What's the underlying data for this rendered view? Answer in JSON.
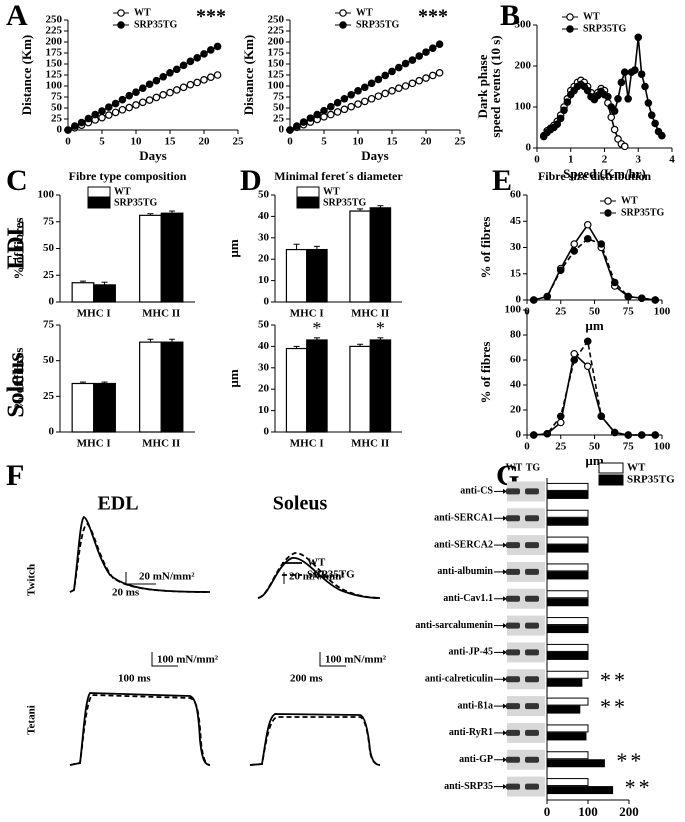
{
  "panel_labels": [
    "A",
    "B",
    "C",
    "D",
    "E",
    "F",
    "G"
  ],
  "row_labels": [
    "EDL",
    "Soleus"
  ],
  "panel_f": {
    "columns": [
      "EDL",
      "Soleus"
    ],
    "rows": [
      "Twitch",
      "Tetani"
    ],
    "legend": [
      "WT",
      "SRP35TG"
    ],
    "scale_bars": [
      "20 mN/mm²",
      "20 ms",
      "20 mN/mm²",
      "100 mN/mm²",
      "100 ms",
      "100 mN/mm²",
      "200 ms"
    ]
  },
  "chart_data": [
    {
      "type": "line",
      "xlabel": "Days",
      "ylabel": [
        "Distance (Km)"
      ],
      "legend": "top-left",
      "xlim": [
        0,
        25
      ],
      "xticks": [
        0,
        5,
        10,
        15,
        20,
        25
      ],
      "ylim": [
        0,
        250
      ],
      "yticks": [
        0,
        25,
        50,
        75,
        100,
        125,
        150,
        175,
        200,
        225,
        250
      ],
      "annotations": [
        {
          "text": "***"
        }
      ],
      "x": [
        0,
        1,
        2,
        3,
        4,
        5,
        6,
        7,
        8,
        9,
        10,
        11,
        12,
        13,
        14,
        15,
        16,
        17,
        18,
        19,
        20,
        21,
        22
      ],
      "series": [
        {
          "name": "WT",
          "color": "#000000",
          "fill": "#ffffff",
          "values": [
            0,
            5,
            11,
            17,
            23,
            28,
            34,
            40,
            46,
            51,
            57,
            63,
            68,
            74,
            80,
            85,
            91,
            97,
            103,
            108,
            114,
            120,
            125
          ]
        },
        {
          "name": "SRP35TG",
          "color": "#000000",
          "fill": "#000000",
          "values": [
            0,
            9,
            17,
            26,
            35,
            43,
            52,
            60,
            69,
            78,
            86,
            95,
            104,
            112,
            121,
            130,
            138,
            147,
            156,
            164,
            173,
            182,
            190
          ]
        }
      ]
    },
    {
      "type": "line",
      "xlabel": "Days",
      "ylabel": [
        "Distance (Km)"
      ],
      "legend": "top-left",
      "xlim": [
        0,
        25
      ],
      "xticks": [
        0,
        5,
        10,
        15,
        20,
        25
      ],
      "ylim": [
        0,
        250
      ],
      "yticks": [
        0,
        25,
        50,
        75,
        100,
        125,
        150,
        175,
        200,
        225,
        250
      ],
      "annotations": [
        {
          "text": "***"
        }
      ],
      "x": [
        0,
        1,
        2,
        3,
        4,
        5,
        6,
        7,
        8,
        9,
        10,
        11,
        12,
        13,
        14,
        15,
        16,
        17,
        18,
        19,
        20,
        21,
        22
      ],
      "series": [
        {
          "name": "WT",
          "color": "#000000",
          "fill": "#ffffff",
          "values": [
            0,
            6,
            12,
            18,
            24,
            30,
            35,
            41,
            47,
            53,
            59,
            65,
            71,
            77,
            83,
            89,
            95,
            100,
            106,
            112,
            118,
            124,
            130
          ]
        },
        {
          "name": "SRP35TG",
          "color": "#000000",
          "fill": "#000000",
          "values": [
            0,
            9,
            18,
            27,
            35,
            44,
            53,
            62,
            71,
            80,
            89,
            97,
            106,
            115,
            124,
            133,
            142,
            151,
            159,
            168,
            177,
            186,
            195
          ]
        }
      ]
    },
    {
      "type": "line",
      "xlabel": "Speed (Km/hr)",
      "ylabel": [
        "Dark phase",
        "speed events (10 s)"
      ],
      "legend": "top-left",
      "xlim": [
        0,
        4
      ],
      "xticks": [
        0,
        1,
        2,
        3,
        4
      ],
      "ylim": [
        0,
        300
      ],
      "yticks": [
        0,
        100,
        200,
        300
      ],
      "x": [
        0.2,
        0.3,
        0.4,
        0.5,
        0.6,
        0.7,
        0.8,
        0.9,
        1.0,
        1.1,
        1.2,
        1.3,
        1.4,
        1.5,
        1.6,
        1.7,
        1.8,
        1.9,
        2.0,
        2.1,
        2.2,
        2.3,
        2.4,
        2.5,
        2.6,
        2.7,
        2.8,
        2.9,
        3.0,
        3.1,
        3.2,
        3.3,
        3.4,
        3.5,
        3.6,
        3.7
      ],
      "series": [
        {
          "name": "WT",
          "color": "#000000",
          "fill": "#ffffff",
          "values": [
            30,
            42,
            48,
            55,
            65,
            80,
            100,
            120,
            140,
            150,
            160,
            165,
            160,
            150,
            135,
            125,
            135,
            145,
            140,
            110,
            75,
            45,
            22,
            10,
            4,
            null,
            null,
            null,
            null,
            null,
            null,
            null,
            null,
            null,
            null,
            null
          ]
        },
        {
          "name": "SRP35TG",
          "color": "#000000",
          "fill": "#000000",
          "values": [
            28,
            38,
            45,
            50,
            58,
            72,
            92,
            112,
            130,
            140,
            150,
            155,
            150,
            140,
            125,
            118,
            128,
            138,
            130,
            125,
            100,
            90,
            120,
            160,
            185,
            120,
            185,
            190,
            270,
            180,
            150,
            110,
            80,
            60,
            40,
            30
          ]
        }
      ]
    },
    {
      "type": "bar",
      "title": "Fibre type composition",
      "ylabel": [
        "% of fibres"
      ],
      "legend": "top-left",
      "ylim": [
        0,
        100
      ],
      "yticks": [
        0,
        25,
        50,
        75,
        100
      ],
      "categories": [
        "MHC I",
        "MHC II"
      ],
      "series": [
        {
          "name": "WT",
          "color": "#ffffff",
          "values": [
            18,
            81
          ],
          "errors": [
            1.5,
            1.5
          ]
        },
        {
          "name": "SRP35TG",
          "color": "#000000",
          "values": [
            16,
            83
          ],
          "errors": [
            2.5,
            2
          ]
        }
      ]
    },
    {
      "type": "bar",
      "ylabel": [
        "% of fibres"
      ],
      "ylim": [
        0,
        75
      ],
      "yticks": [
        0,
        25,
        50,
        75
      ],
      "categories": [
        "MHC I",
        "MHC II"
      ],
      "series": [
        {
          "name": "WT",
          "color": "#ffffff",
          "values": [
            34,
            63
          ],
          "errors": [
            1,
            2
          ]
        },
        {
          "name": "SRP35TG",
          "color": "#000000",
          "values": [
            34,
            63
          ],
          "errors": [
            1,
            2
          ]
        }
      ]
    },
    {
      "type": "bar",
      "title": "Minimal feret´s diameter",
      "ylabel": [
        "µm"
      ],
      "legend": "top-left",
      "ylim": [
        0,
        50
      ],
      "yticks": [
        0,
        10,
        20,
        30,
        40,
        50
      ],
      "categories": [
        "MHC I",
        "MHC II"
      ],
      "series": [
        {
          "name": "WT",
          "color": "#ffffff",
          "values": [
            24.5,
            42.5
          ],
          "errors": [
            2.5,
            1
          ]
        },
        {
          "name": "SRP35TG",
          "color": "#000000",
          "values": [
            24.5,
            44
          ],
          "errors": [
            1.5,
            1
          ]
        }
      ]
    },
    {
      "type": "bar",
      "ylabel": [
        "µm"
      ],
      "ylim": [
        0,
        50
      ],
      "yticks": [
        0,
        10,
        20,
        30,
        40,
        50
      ],
      "categories": [
        "MHC I",
        "MHC II"
      ],
      "annotations": [
        {
          "text": "*",
          "category": "MHC I",
          "series": "SRP35TG"
        },
        {
          "text": "*",
          "category": "MHC II",
          "series": "SRP35TG"
        }
      ],
      "series": [
        {
          "name": "WT",
          "color": "#ffffff",
          "values": [
            39,
            40
          ],
          "errors": [
            1,
            1
          ]
        },
        {
          "name": "SRP35TG",
          "color": "#000000",
          "values": [
            43,
            43
          ],
          "errors": [
            1,
            1
          ]
        }
      ]
    },
    {
      "type": "line",
      "title": "Fibre size distribution",
      "xlabel": "µm",
      "ylabel": [
        "% of fibres"
      ],
      "legend": "top-right",
      "xlim": [
        0,
        100
      ],
      "xticks": [
        0,
        25,
        50,
        75,
        100
      ],
      "ylim": [
        0,
        60
      ],
      "yticks": [
        0,
        15,
        30,
        45,
        60
      ],
      "x": [
        5,
        15,
        25,
        35,
        45,
        55,
        65,
        75,
        85,
        95
      ],
      "series": [
        {
          "name": "WT",
          "color": "#000000",
          "fill": "#ffffff",
          "values": [
            0,
            2,
            18,
            32,
            43,
            30,
            8,
            2,
            1,
            0
          ]
        },
        {
          "name": "SRP35TG",
          "color": "#000000",
          "fill": "#000000",
          "dash": true,
          "values": [
            0,
            2,
            17,
            28,
            35,
            32,
            10,
            2,
            1,
            0
          ]
        }
      ]
    },
    {
      "type": "line",
      "xlabel": "µm",
      "ylabel": [
        "% of fibres"
      ],
      "xlim": [
        0,
        100
      ],
      "xticks": [
        0,
        25,
        50,
        75,
        100
      ],
      "ylim": [
        0,
        100
      ],
      "yticks": [
        0,
        20,
        40,
        60,
        80,
        100
      ],
      "x": [
        5,
        15,
        25,
        35,
        45,
        55,
        65,
        75,
        85,
        95
      ],
      "series": [
        {
          "name": "WT",
          "color": "#000000",
          "fill": "#ffffff",
          "values": [
            0,
            1,
            10,
            65,
            55,
            15,
            2,
            0,
            0,
            0
          ]
        },
        {
          "name": "SRP35TG",
          "color": "#000000",
          "fill": "#000000",
          "dash": true,
          "values": [
            0,
            1,
            15,
            60,
            75,
            15,
            2,
            0,
            0,
            0
          ]
        }
      ]
    },
    {
      "type": "barh",
      "legend": "top-right",
      "lanes": [
        "WT",
        "TG"
      ],
      "xlim": [
        0,
        200
      ],
      "xticks": [
        0,
        100,
        200
      ],
      "categories": [
        "anti-CS",
        "anti-SERCA1",
        "anti-SERCA2",
        "anti-albumin",
        "anti-Cav1.1",
        "anti-sarcalumenin",
        "anti-JP-45",
        "anti-calreticulin",
        "anti-ß1a",
        "anti-RyR1",
        "anti-GP",
        "anti-SRP35"
      ],
      "annotations": [
        {
          "text": "**",
          "category": "anti-calreticulin"
        },
        {
          "text": "**",
          "category": "anti-ß1a"
        },
        {
          "text": "**",
          "category": "anti-GP"
        },
        {
          "text": "**",
          "category": "anti-SRP35"
        }
      ],
      "series": [
        {
          "name": "WT",
          "color": "#ffffff",
          "values": [
            100,
            100,
            100,
            100,
            100,
            100,
            100,
            100,
            100,
            100,
            100,
            100
          ]
        },
        {
          "name": "SRP35TG",
          "color": "#000000",
          "values": [
            100,
            100,
            100,
            100,
            100,
            100,
            100,
            85,
            80,
            95,
            140,
            160
          ]
        }
      ]
    }
  ]
}
